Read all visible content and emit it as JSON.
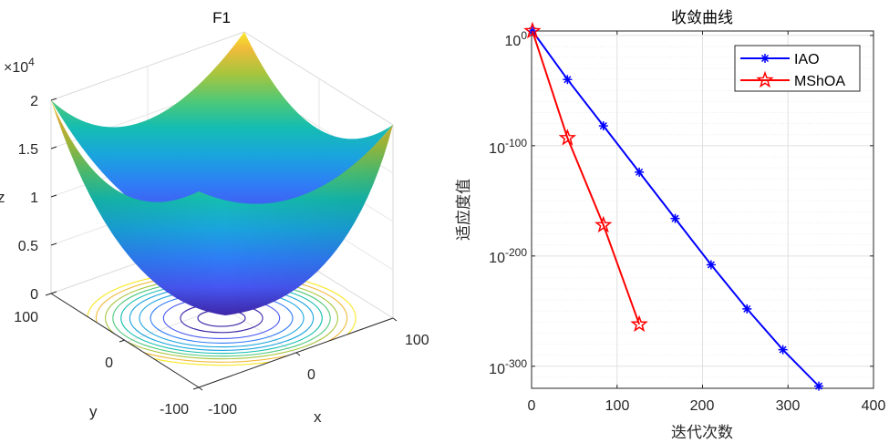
{
  "chart_data": [
    {
      "type": "surface3d",
      "title": "F1",
      "xlabel": "x",
      "ylabel": "y",
      "zlabel": "z",
      "function": "z = x^2 + y^2",
      "xlim": [
        -100,
        100
      ],
      "ylim": [
        -100,
        100
      ],
      "zlim": [
        0,
        20000
      ],
      "x_ticks": [
        "-100",
        "0",
        "100"
      ],
      "y_ticks": [
        "-100",
        "0",
        "100"
      ],
      "z_ticks": [
        "0",
        "0.5",
        "1",
        "1.5",
        "2"
      ],
      "z_exponent_prefix": "×10",
      "z_exponent": "4",
      "contour_levels": [
        500,
        1500,
        3000,
        4500,
        6000,
        7500,
        9000,
        10500,
        12000,
        14000,
        16000
      ],
      "colormap": "parula"
    },
    {
      "type": "line",
      "title": "收敛曲线",
      "xlabel": "迭代次数",
      "ylabel": "适应度值",
      "xlim": [
        0,
        400
      ],
      "y_scale": "log10",
      "ylim_exponent": [
        -320,
        0
      ],
      "x_ticks": [
        "0",
        "100",
        "200",
        "300",
        "400"
      ],
      "y_ticks": [
        {
          "base": "10",
          "exp": "0",
          "value_exp": 0
        },
        {
          "base": "10",
          "exp": "-100",
          "value_exp": -100
        },
        {
          "base": "10",
          "exp": "-200",
          "value_exp": -200
        },
        {
          "base": "10",
          "exp": "-300",
          "value_exp": -300
        }
      ],
      "grid": true,
      "legend_position": "top-right",
      "series": [
        {
          "name": "IAO",
          "color": "#0000ff",
          "marker": "asterisk",
          "x": [
            1,
            42,
            84,
            126,
            168,
            210,
            252,
            294,
            336
          ],
          "log10_y": [
            4,
            -40,
            -82,
            -124,
            -166,
            -208,
            -248,
            -285,
            -318
          ]
        },
        {
          "name": "MShOA",
          "color": "#ff0000",
          "marker": "pentagram",
          "x": [
            1,
            42,
            84,
            126
          ],
          "log10_y": [
            4,
            -93,
            -172,
            -262
          ]
        }
      ]
    }
  ]
}
